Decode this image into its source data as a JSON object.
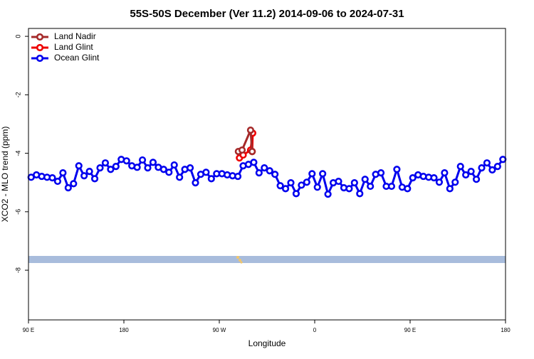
{
  "chart_data": {
    "type": "line",
    "title": "55S-50S December (Ver 11.2)   2014-09-06 to 2024-07-31",
    "xlabel": "Longitude",
    "ylabel": "XCO2 - MLO trend (ppm)",
    "xlim": [
      90,
      540
    ],
    "xticks": [
      {
        "value": 90,
        "label": "90 E"
      },
      180,
      {
        "value": 270,
        "label": "90 W"
      },
      {
        "value": 360,
        "label": "0"
      },
      {
        "value": 450,
        "label": "90 E"
      },
      {
        "value": 540,
        "label": "180"
      }
    ],
    "ylim": [
      -9.7,
      0.27
    ],
    "yticks": [
      0,
      -2,
      -4,
      -6,
      -8
    ],
    "legend": "upper left",
    "series": [
      {
        "name": "Land Nadir",
        "color": "#a52a2a",
        "x": [
          288,
          291.5,
          299.5,
          301
        ],
        "values": [
          -3.94,
          -3.89,
          -3.21,
          -3.94
        ]
      },
      {
        "name": "Land Glint",
        "color": "#ee0000",
        "x": [
          289,
          292.5,
          299.5,
          301.5,
          301
        ],
        "values": [
          -4.16,
          -4.06,
          -3.89,
          -3.31,
          -3.94
        ]
      },
      {
        "name": "Ocean Glint",
        "color": "#0000ee",
        "x": [
          92.5,
          97.5,
          102.5,
          107.5,
          112.5,
          117.5,
          122.5,
          127.5,
          132.5,
          137.5,
          142.5,
          147.5,
          152.5,
          157.5,
          162.5,
          167.5,
          172.5,
          177.5,
          182.5,
          187.5,
          192.5,
          197.5,
          202.5,
          207.5,
          212.5,
          217.5,
          222.5,
          227.5,
          232.5,
          237.5,
          242.5,
          247.5,
          252.5,
          257.5,
          262.5,
          267.5,
          272.5,
          277.5,
          282.5,
          287.5,
          292.5,
          297.5,
          302.5,
          307.5,
          312.5,
          317.5,
          322.5,
          327.5,
          332.5,
          337.5,
          342.5,
          347.5,
          352.5,
          357.5,
          362.5,
          367.5,
          372.5,
          377.5,
          382.5,
          387.5,
          392.5,
          397.5,
          402.5,
          407.5,
          412.5,
          417.5,
          422.5,
          427.5,
          432.5,
          437.5,
          442.5,
          447.5,
          452.5,
          457.5,
          462.5,
          467.5,
          472.5,
          477.5,
          482.5,
          487.5,
          492.5,
          497.5,
          502.5,
          507.5,
          512.5,
          517.5,
          522.5,
          527.5,
          532.5,
          537.5
        ],
        "values": [
          -4.82,
          -4.74,
          -4.79,
          -4.82,
          -4.84,
          -4.96,
          -4.67,
          -5.18,
          -5.04,
          -4.43,
          -4.77,
          -4.62,
          -4.87,
          -4.5,
          -4.33,
          -4.55,
          -4.45,
          -4.21,
          -4.26,
          -4.43,
          -4.48,
          -4.23,
          -4.5,
          -4.31,
          -4.48,
          -4.55,
          -4.65,
          -4.4,
          -4.82,
          -4.55,
          -4.5,
          -5.01,
          -4.72,
          -4.65,
          -4.87,
          -4.7,
          -4.7,
          -4.74,
          -4.77,
          -4.79,
          -4.43,
          -4.38,
          -4.31,
          -4.67,
          -4.5,
          -4.6,
          -4.72,
          -5.11,
          -5.21,
          -5.01,
          -5.38,
          -5.09,
          -4.99,
          -4.7,
          -5.16,
          -4.7,
          -5.4,
          -5.01,
          -4.96,
          -5.18,
          -5.21,
          -5.01,
          -5.38,
          -4.89,
          -5.13,
          -4.72,
          -4.67,
          -5.13,
          -5.13,
          -4.55,
          -5.16,
          -5.21,
          -4.84,
          -4.74,
          -4.79,
          -4.82,
          -4.84,
          -4.99,
          -4.67,
          -5.21,
          -4.99,
          -4.45,
          -4.74,
          -4.62,
          -4.89,
          -4.5,
          -4.33,
          -4.57,
          -4.45,
          -4.21
        ]
      }
    ]
  }
}
